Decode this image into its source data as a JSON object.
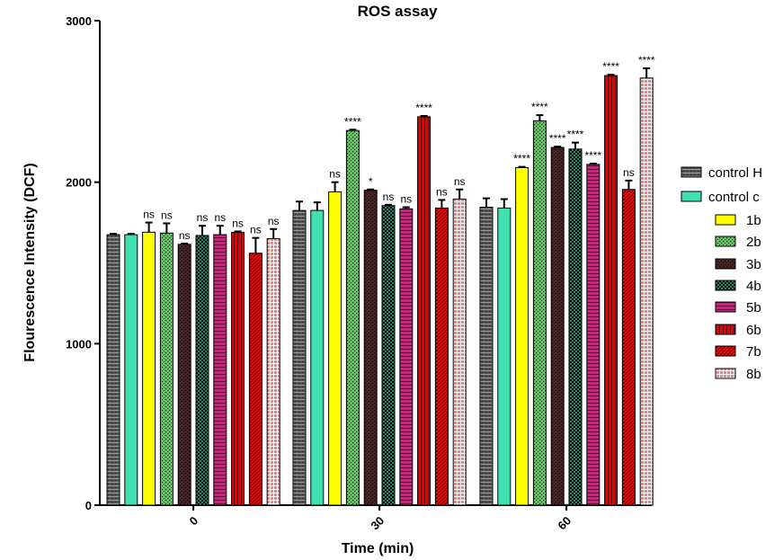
{
  "chart_data": {
    "type": "bar",
    "title": "ROS assay",
    "xlabel": "Time (min)",
    "ylabel": "Flourescence Intensity (DCF)",
    "categories": [
      "0",
      "30",
      "60"
    ],
    "ylim": [
      0,
      3000
    ],
    "yticks": [
      0,
      1000,
      2000,
      3000
    ],
    "grid": false,
    "legend_position": "right",
    "series": [
      {
        "name": "control H",
        "color": "#555555",
        "pattern": "hatch-h",
        "values": [
          1675,
          1825,
          1845
        ],
        "errors": [
          5,
          55,
          55
        ],
        "labels": [
          "",
          "",
          ""
        ]
      },
      {
        "name": "control c",
        "color": "#40E0B0",
        "pattern": "solid",
        "values": [
          1675,
          1825,
          1840
        ],
        "errors": [
          5,
          50,
          55
        ],
        "labels": [
          "",
          "",
          ""
        ]
      },
      {
        "name": "1b",
        "color": "#FFFF00",
        "pattern": "solid",
        "values": [
          1690,
          1940,
          2090
        ],
        "errors": [
          60,
          60,
          5
        ],
        "labels": [
          "ns",
          "ns",
          "****"
        ]
      },
      {
        "name": "2b",
        "color": "#33DD33",
        "pattern": "dots",
        "values": [
          1685,
          2320,
          2380
        ],
        "errors": [
          60,
          5,
          35
        ],
        "labels": [
          "ns",
          "****",
          "****"
        ]
      },
      {
        "name": "3b",
        "color": "#5A1A1A",
        "pattern": "dots",
        "values": [
          1615,
          1950,
          2215
        ],
        "errors": [
          5,
          5,
          5
        ],
        "labels": [
          "ns",
          "*",
          "****"
        ]
      },
      {
        "name": "4b",
        "color": "#1E8C6E",
        "pattern": "checker",
        "values": [
          1670,
          1855,
          2205
        ],
        "errors": [
          60,
          5,
          40
        ],
        "labels": [
          "ns",
          "ns",
          "****"
        ]
      },
      {
        "name": "5b",
        "color": "#D02080",
        "pattern": "hstripes",
        "values": [
          1675,
          1835,
          2110
        ],
        "errors": [
          55,
          10,
          5
        ],
        "labels": [
          "ns",
          "ns",
          "****"
        ]
      },
      {
        "name": "6b",
        "color": "#E80000",
        "pattern": "vstripes",
        "values": [
          1690,
          2405,
          2660
        ],
        "errors": [
          5,
          5,
          5
        ],
        "labels": [
          "ns",
          "****",
          "****"
        ]
      },
      {
        "name": "7b",
        "color": "#E81010",
        "pattern": "diag",
        "values": [
          1560,
          1840,
          1955
        ],
        "errors": [
          95,
          50,
          55
        ],
        "labels": [
          "ns",
          "ns",
          "ns"
        ]
      },
      {
        "name": "8b",
        "color": "#F58080",
        "pattern": "grid",
        "values": [
          1650,
          1895,
          2645
        ],
        "errors": [
          60,
          60,
          60
        ],
        "labels": [
          "ns",
          "ns",
          "****"
        ]
      }
    ]
  }
}
